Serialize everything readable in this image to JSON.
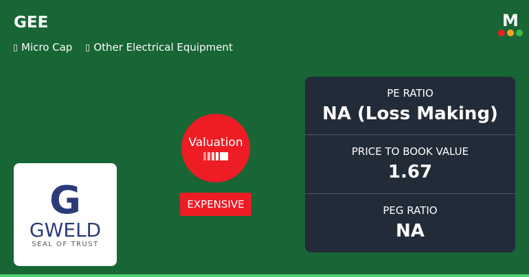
{
  "header": {
    "ticker": "GEE",
    "tags": [
      "Micro Cap",
      "Other Electrical Equipment"
    ]
  },
  "brand": {
    "letter": "M",
    "dot_colors": [
      "#ee1c25",
      "#f5a623",
      "#3cb54a"
    ]
  },
  "company_logo": {
    "letter": "G",
    "name": "GWELD",
    "tagline": "SEAL OF TRUST"
  },
  "valuation": {
    "label": "Valuation",
    "verdict": "EXPENSIVE",
    "color": "#ee1c25",
    "level": "5 of 5"
  },
  "metrics": [
    {
      "label": "PE RATIO",
      "value": "NA (Loss Making)"
    },
    {
      "label": "PRICE TO BOOK VALUE",
      "value": "1.67"
    },
    {
      "label": "PEG RATIO",
      "value": "NA"
    }
  ]
}
